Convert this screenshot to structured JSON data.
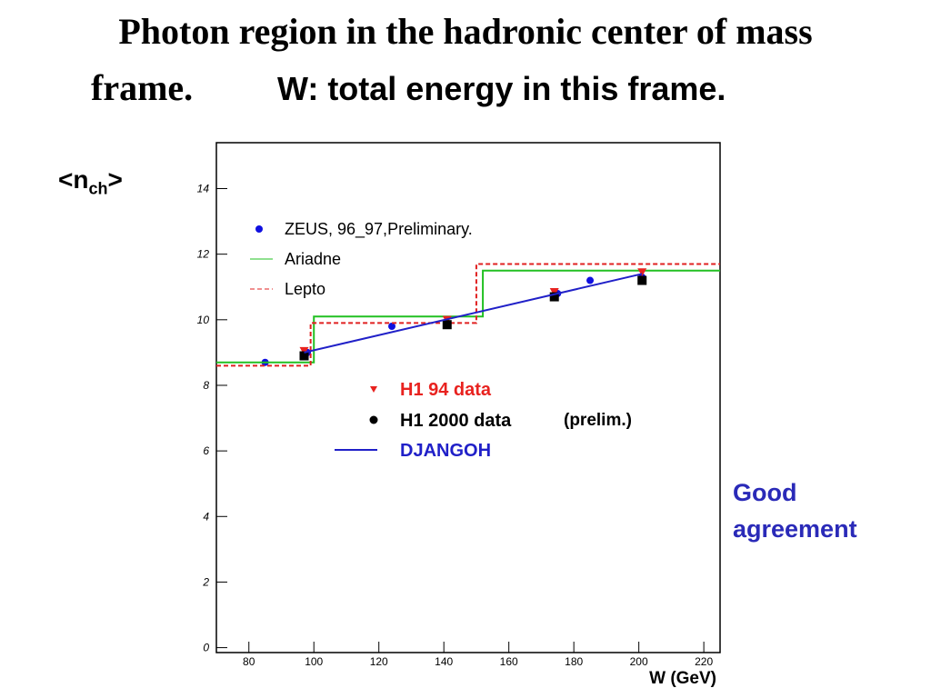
{
  "chart_data": {
    "type": "line",
    "title": "Photon region in the hadronic center of mass",
    "title_end": "frame.",
    "subtitle": "W: total energy in this frame.",
    "y_label": {
      "text": "<n",
      "subscript": "ch",
      "suffix": ">"
    },
    "x_label": "W (GeV)",
    "xlim": [
      70,
      225
    ],
    "xticks": [
      80,
      100,
      120,
      140,
      160,
      180,
      200,
      220
    ],
    "ylim": [
      -0.15,
      15.4
    ],
    "yticks": [
      0,
      2,
      4,
      6,
      8,
      10,
      12,
      14
    ],
    "series": [
      {
        "name": "ZEUS, 96_97,Preliminary.",
        "color": "#1010e0",
        "marker": "circle",
        "x": [
          85,
          98,
          124,
          141,
          175,
          185,
          201
        ],
        "values": [
          8.7,
          9.0,
          9.8,
          9.9,
          10.8,
          11.2,
          11.3
        ]
      },
      {
        "name": "Ariadne",
        "color": "#22c022",
        "marker": "step",
        "x": [
          70,
          100,
          100,
          152,
          152,
          225
        ],
        "values": [
          8.7,
          8.7,
          10.1,
          10.1,
          11.5,
          11.5
        ]
      },
      {
        "name": "Lepto",
        "color": "#e02020",
        "marker": "dashed-step",
        "x": [
          70,
          99,
          99,
          150,
          150,
          225
        ],
        "values": [
          8.6,
          8.6,
          9.9,
          9.9,
          11.7,
          11.7
        ]
      },
      {
        "name": "H1 94 data",
        "color": "#e8221f",
        "marker": "triangle",
        "x": [
          97,
          141,
          174,
          201
        ],
        "values": [
          9.0,
          9.95,
          10.8,
          11.4
        ]
      },
      {
        "name": "H1 2000 data",
        "color": "#000000",
        "marker": "square",
        "x": [
          97,
          141,
          174,
          201
        ],
        "values": [
          8.9,
          9.85,
          10.7,
          11.2
        ]
      },
      {
        "name": "DJANGOH",
        "color": "#2020c8",
        "marker": "line",
        "x": [
          97,
          201
        ],
        "values": [
          9.0,
          11.4
        ]
      }
    ],
    "annotations": [
      "(prelim.)",
      "Good agreement"
    ]
  }
}
